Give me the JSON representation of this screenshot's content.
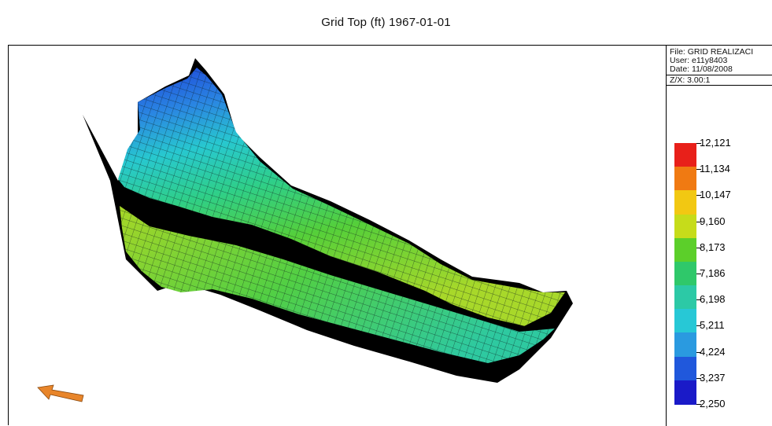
{
  "title": "Grid Top (ft) 1967-01-01",
  "info": {
    "file": "File: GRID REALIZACI",
    "user": "User:  e11y8403",
    "date": "Date:  11/08/2008",
    "zx": "Z/X: 3.00:1"
  },
  "legend": {
    "labels": [
      "12,121",
      "11,134",
      "10,147",
      "9,160",
      "8,173",
      "7,186",
      "6,198",
      "5,211",
      "4,224",
      "3,237",
      "2,250"
    ],
    "colors": [
      "#e8201a",
      "#f07a12",
      "#f2c812",
      "#c6dc1a",
      "#5ccf2a",
      "#2fc86a",
      "#2cc9a6",
      "#27c8d6",
      "#2a9ae0",
      "#2058dc",
      "#1a1ac8"
    ]
  },
  "icons": {
    "orientation": "orientation-arrow-icon"
  }
}
